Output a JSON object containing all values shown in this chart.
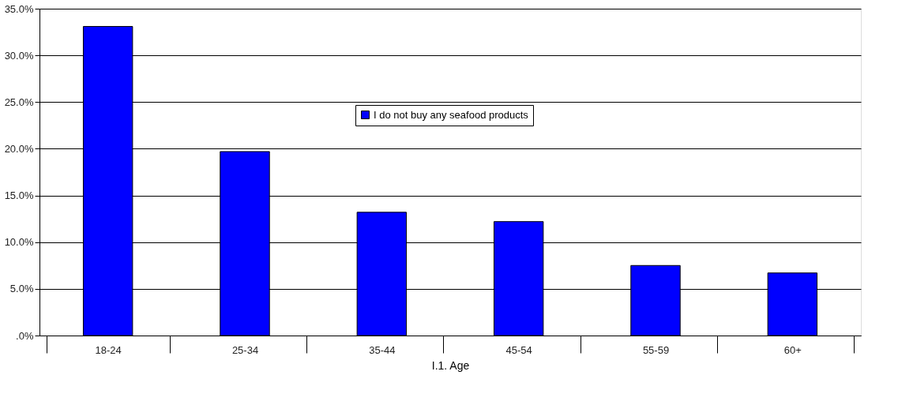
{
  "chart_data": {
    "type": "bar",
    "xlabel": "I.1. Age",
    "categories": [
      "18-24",
      "25-34",
      "35-44",
      "45-54",
      "55-59",
      "60+"
    ],
    "series": [
      {
        "name": "I do not buy any seafood products",
        "color": "#0000ff",
        "values": [
          33.1,
          19.7,
          13.2,
          12.2,
          7.5,
          6.7
        ]
      }
    ],
    "ylim": [
      0,
      35
    ],
    "yticks": [
      {
        "value": 0,
        "label": ".0%"
      },
      {
        "value": 5,
        "label": "5.0%"
      },
      {
        "value": 10,
        "label": "10.0%"
      },
      {
        "value": 15,
        "label": "15.0%"
      },
      {
        "value": 20,
        "label": "20.0%"
      },
      {
        "value": 25,
        "label": "25.0%"
      },
      {
        "value": 30,
        "label": "30.0%"
      },
      {
        "value": 35,
        "label": "35.0%"
      }
    ],
    "grid": "y",
    "legend": "top"
  }
}
